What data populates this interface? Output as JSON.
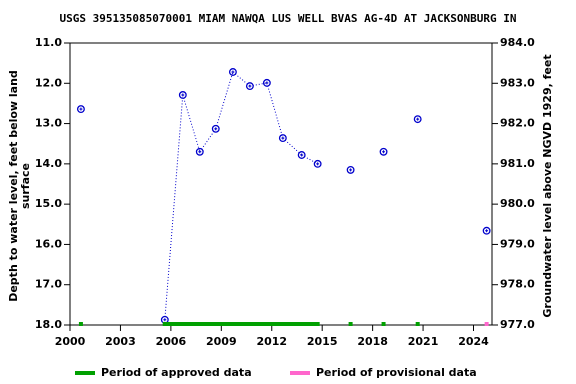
{
  "chart_data": {
    "type": "scatter",
    "title": "USGS 395135085070001 MIAM NAWQA LUS WELL BVAS AG-4D AT JACKSONBURG IN",
    "ylabel": [
      "Depth to water level, feet below land",
      "surface"
    ],
    "y2label": "Groundwater level above NGVD 1929, feet",
    "marker_color": "#0000cc",
    "series": [
      {
        "name": "Period of approved data",
        "color": "#00a000",
        "x": [
          2000.65,
          2005.64,
          2006.71,
          2007.72,
          2008.67,
          2009.69,
          2010.7,
          2011.71,
          2012.66,
          2013.78,
          2014.73,
          2016.69,
          2018.65,
          2020.68
        ],
        "values": [
          12.64,
          17.87,
          12.29,
          13.7,
          13.13,
          11.72,
          12.07,
          11.99,
          13.36,
          13.78,
          14.0,
          14.15,
          13.7,
          12.89
        ]
      },
      {
        "name": "Period of provisional data",
        "color": "#ff66cc",
        "x": [
          2024.78
        ],
        "values": [
          15.66
        ]
      }
    ],
    "xlim": [
      2000,
      2025.1
    ],
    "xticks": [
      2000,
      2003,
      2006,
      2009,
      2012,
      2015,
      2018,
      2021,
      2024
    ],
    "ylim": [
      18,
      11
    ],
    "yticks": [
      {
        "value": 11,
        "label": "11.0"
      },
      {
        "value": 12,
        "label": "12.0"
      },
      {
        "value": 13,
        "label": "13.0"
      },
      {
        "value": 14,
        "label": "14.0"
      },
      {
        "value": 15,
        "label": "15.0"
      },
      {
        "value": 16,
        "label": "16.0"
      },
      {
        "value": 17,
        "label": "17.0"
      },
      {
        "value": 18,
        "label": "18.0"
      }
    ],
    "y2lim": [
      977,
      984
    ],
    "y2ticks": [
      {
        "value": 984,
        "label": "984.0"
      },
      {
        "value": 983,
        "label": "983.0"
      },
      {
        "value": 982,
        "label": "982.0"
      },
      {
        "value": 981,
        "label": "981.0"
      },
      {
        "value": 980,
        "label": "980.0"
      },
      {
        "value": 979,
        "label": "979.0"
      },
      {
        "value": 978,
        "label": "978.0"
      },
      {
        "value": 977,
        "label": "977.0"
      }
    ]
  }
}
